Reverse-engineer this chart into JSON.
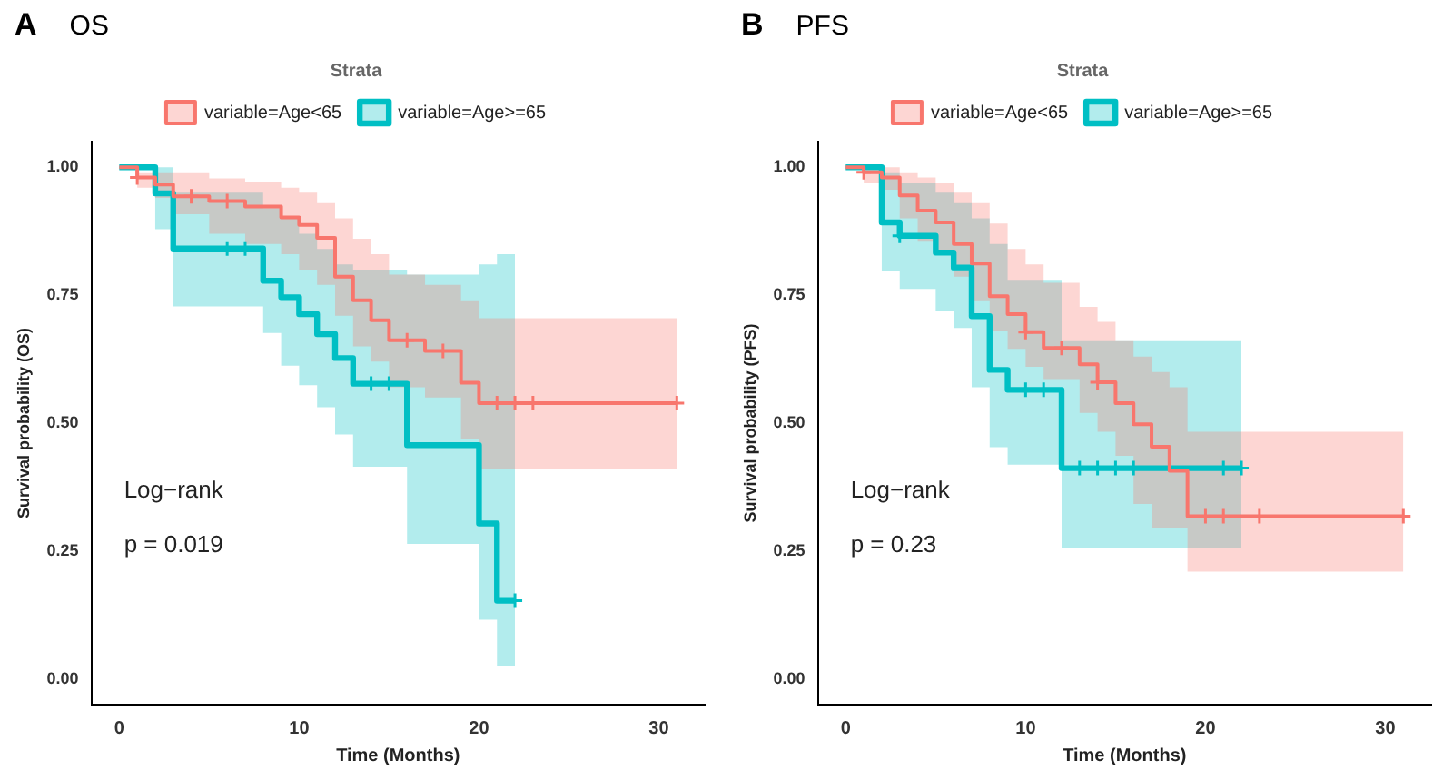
{
  "chart_data": [
    {
      "type": "step",
      "title": "A",
      "subtitle": "OS",
      "xlabel": "Time (Months)",
      "ylabel": "Survival probability (OS)",
      "legend_title": "Strata",
      "legend": "top",
      "grid": false,
      "xlim": [
        -1.55,
        32.55
      ],
      "xticks": [
        0,
        10,
        20,
        30
      ],
      "ylim": [
        -0.05,
        1.05
      ],
      "yticks": [
        {
          "value": 0,
          "label": "0.00"
        },
        {
          "value": 0.25,
          "label": "0.25"
        },
        {
          "value": 0.5,
          "label": "0.50"
        },
        {
          "value": 0.75,
          "label": "0.75"
        },
        {
          "value": 1,
          "label": "1.00"
        }
      ],
      "annotations": [
        "Log−rank",
        "p = 0.019"
      ],
      "series": [
        {
          "name": "variable=Age<65",
          "type": "step",
          "color": "#f8766d",
          "x": [
            0,
            1,
            2,
            3,
            5,
            7,
            9,
            10,
            11,
            12,
            13,
            14,
            15,
            17,
            19,
            20,
            31
          ],
          "values": [
            1,
            0.98,
            0.966,
            0.943,
            0.934,
            0.923,
            0.902,
            0.887,
            0.862,
            0.786,
            0.74,
            0.701,
            0.662,
            0.641,
            0.579,
            0.539,
            0.539
          ],
          "upper": [
            1,
            0.99,
            0.99,
            0.99,
            0.978,
            0.972,
            0.96,
            0.95,
            0.93,
            0.9,
            0.86,
            0.83,
            0.79,
            0.77,
            0.74,
            0.705,
            0.705
          ],
          "lower": [
            1,
            0.96,
            0.94,
            0.908,
            0.87,
            0.85,
            0.83,
            0.8,
            0.77,
            0.71,
            0.65,
            0.62,
            0.57,
            0.55,
            0.47,
            0.411,
            0.411
          ]
        },
        {
          "name": "variable=Age>=65",
          "type": "step",
          "color": "#00bfc4",
          "x": [
            0,
            2,
            3,
            8,
            9,
            10,
            11,
            12,
            13,
            16,
            20,
            21,
            22
          ],
          "values": [
            1,
            0.949,
            0.841,
            0.778,
            0.746,
            0.713,
            0.674,
            0.627,
            0.577,
            0.457,
            0.304,
            0.153,
            0.153
          ],
          "upper": [
            1,
            1,
            0.95,
            0.92,
            0.9,
            0.87,
            0.84,
            0.81,
            0.8,
            0.79,
            0.81,
            0.83,
            0.83
          ],
          "lower": [
            1,
            0.879,
            0.728,
            0.676,
            0.612,
            0.574,
            0.531,
            0.478,
            0.415,
            0.264,
            0.116,
            0.025,
            0.025
          ]
        },
        {
          "type": "scatter",
          "marker": "cross",
          "color": "#f8766d",
          "x": [
            1,
            4,
            6,
            16,
            18,
            21,
            22,
            23,
            31
          ],
          "values": [
            0.98,
            0.943,
            0.934,
            0.662,
            0.641,
            0.539,
            0.539,
            0.539,
            0.539
          ]
        },
        {
          "type": "scatter",
          "marker": "cross",
          "color": "#00bfc4",
          "x": [
            6,
            7,
            14,
            15,
            22
          ],
          "values": [
            0.841,
            0.841,
            0.577,
            0.577,
            0.153
          ]
        }
      ]
    },
    {
      "type": "step",
      "title": "B",
      "subtitle": "PFS",
      "xlabel": "Time (Months)",
      "ylabel": "Survival probability (PFS)",
      "legend_title": "Strata",
      "legend": "top",
      "grid": false,
      "xlim": [
        -1.55,
        32.55
      ],
      "xticks": [
        0,
        10,
        20,
        30
      ],
      "ylim": [
        -0.05,
        1.05
      ],
      "yticks": [
        {
          "value": 0,
          "label": "0.00"
        },
        {
          "value": 0.25,
          "label": "0.25"
        },
        {
          "value": 0.5,
          "label": "0.50"
        },
        {
          "value": 0.75,
          "label": "0.75"
        },
        {
          "value": 1,
          "label": "1.00"
        }
      ],
      "annotations": [
        "Log−rank",
        "p = 0.23"
      ],
      "series": [
        {
          "name": "variable=Age<65",
          "type": "step",
          "color": "#f8766d",
          "x": [
            0,
            1,
            2,
            3,
            4,
            5,
            6,
            7,
            8,
            9,
            10,
            11,
            13,
            14,
            15,
            16,
            17,
            18,
            19,
            31
          ],
          "values": [
            1,
            0.99,
            0.98,
            0.945,
            0.915,
            0.892,
            0.85,
            0.812,
            0.748,
            0.713,
            0.678,
            0.647,
            0.615,
            0.58,
            0.539,
            0.498,
            0.454,
            0.407,
            0.318,
            0.318
          ],
          "upper": [
            1,
            1,
            1,
            0.99,
            0.98,
            0.97,
            0.95,
            0.93,
            0.89,
            0.84,
            0.81,
            0.774,
            0.727,
            0.698,
            0.662,
            0.63,
            0.6,
            0.57,
            0.483,
            0.483
          ],
          "lower": [
            1,
            0.97,
            0.956,
            0.9,
            0.856,
            0.833,
            0.786,
            0.74,
            0.68,
            0.645,
            0.61,
            0.586,
            0.52,
            0.483,
            0.436,
            0.342,
            0.295,
            0.295,
            0.21,
            0.21
          ]
        },
        {
          "name": "variable=Age>=65",
          "type": "step",
          "color": "#00bfc4",
          "x": [
            0,
            2,
            3,
            5,
            6,
            7,
            8,
            9,
            12,
            22
          ],
          "values": [
            1,
            0.892,
            0.866,
            0.833,
            0.804,
            0.709,
            0.604,
            0.565,
            0.412,
            0.412
          ],
          "upper": [
            1,
            0.99,
            0.97,
            0.95,
            0.93,
            0.9,
            0.85,
            0.78,
            0.662,
            0.662
          ],
          "lower": [
            1,
            0.798,
            0.762,
            0.72,
            0.686,
            0.57,
            0.453,
            0.419,
            0.256,
            0.256
          ]
        },
        {
          "type": "scatter",
          "marker": "cross",
          "color": "#f8766d",
          "x": [
            1,
            10,
            12,
            14,
            20,
            21,
            23,
            31
          ],
          "values": [
            0.99,
            0.678,
            0.647,
            0.58,
            0.318,
            0.318,
            0.318,
            0.318
          ]
        },
        {
          "type": "scatter",
          "marker": "cross",
          "color": "#00bfc4",
          "x": [
            3,
            10,
            11,
            13,
            14,
            15,
            16,
            21,
            22
          ],
          "values": [
            0.866,
            0.565,
            0.565,
            0.412,
            0.412,
            0.412,
            0.412,
            0.412,
            0.412
          ]
        }
      ]
    }
  ]
}
